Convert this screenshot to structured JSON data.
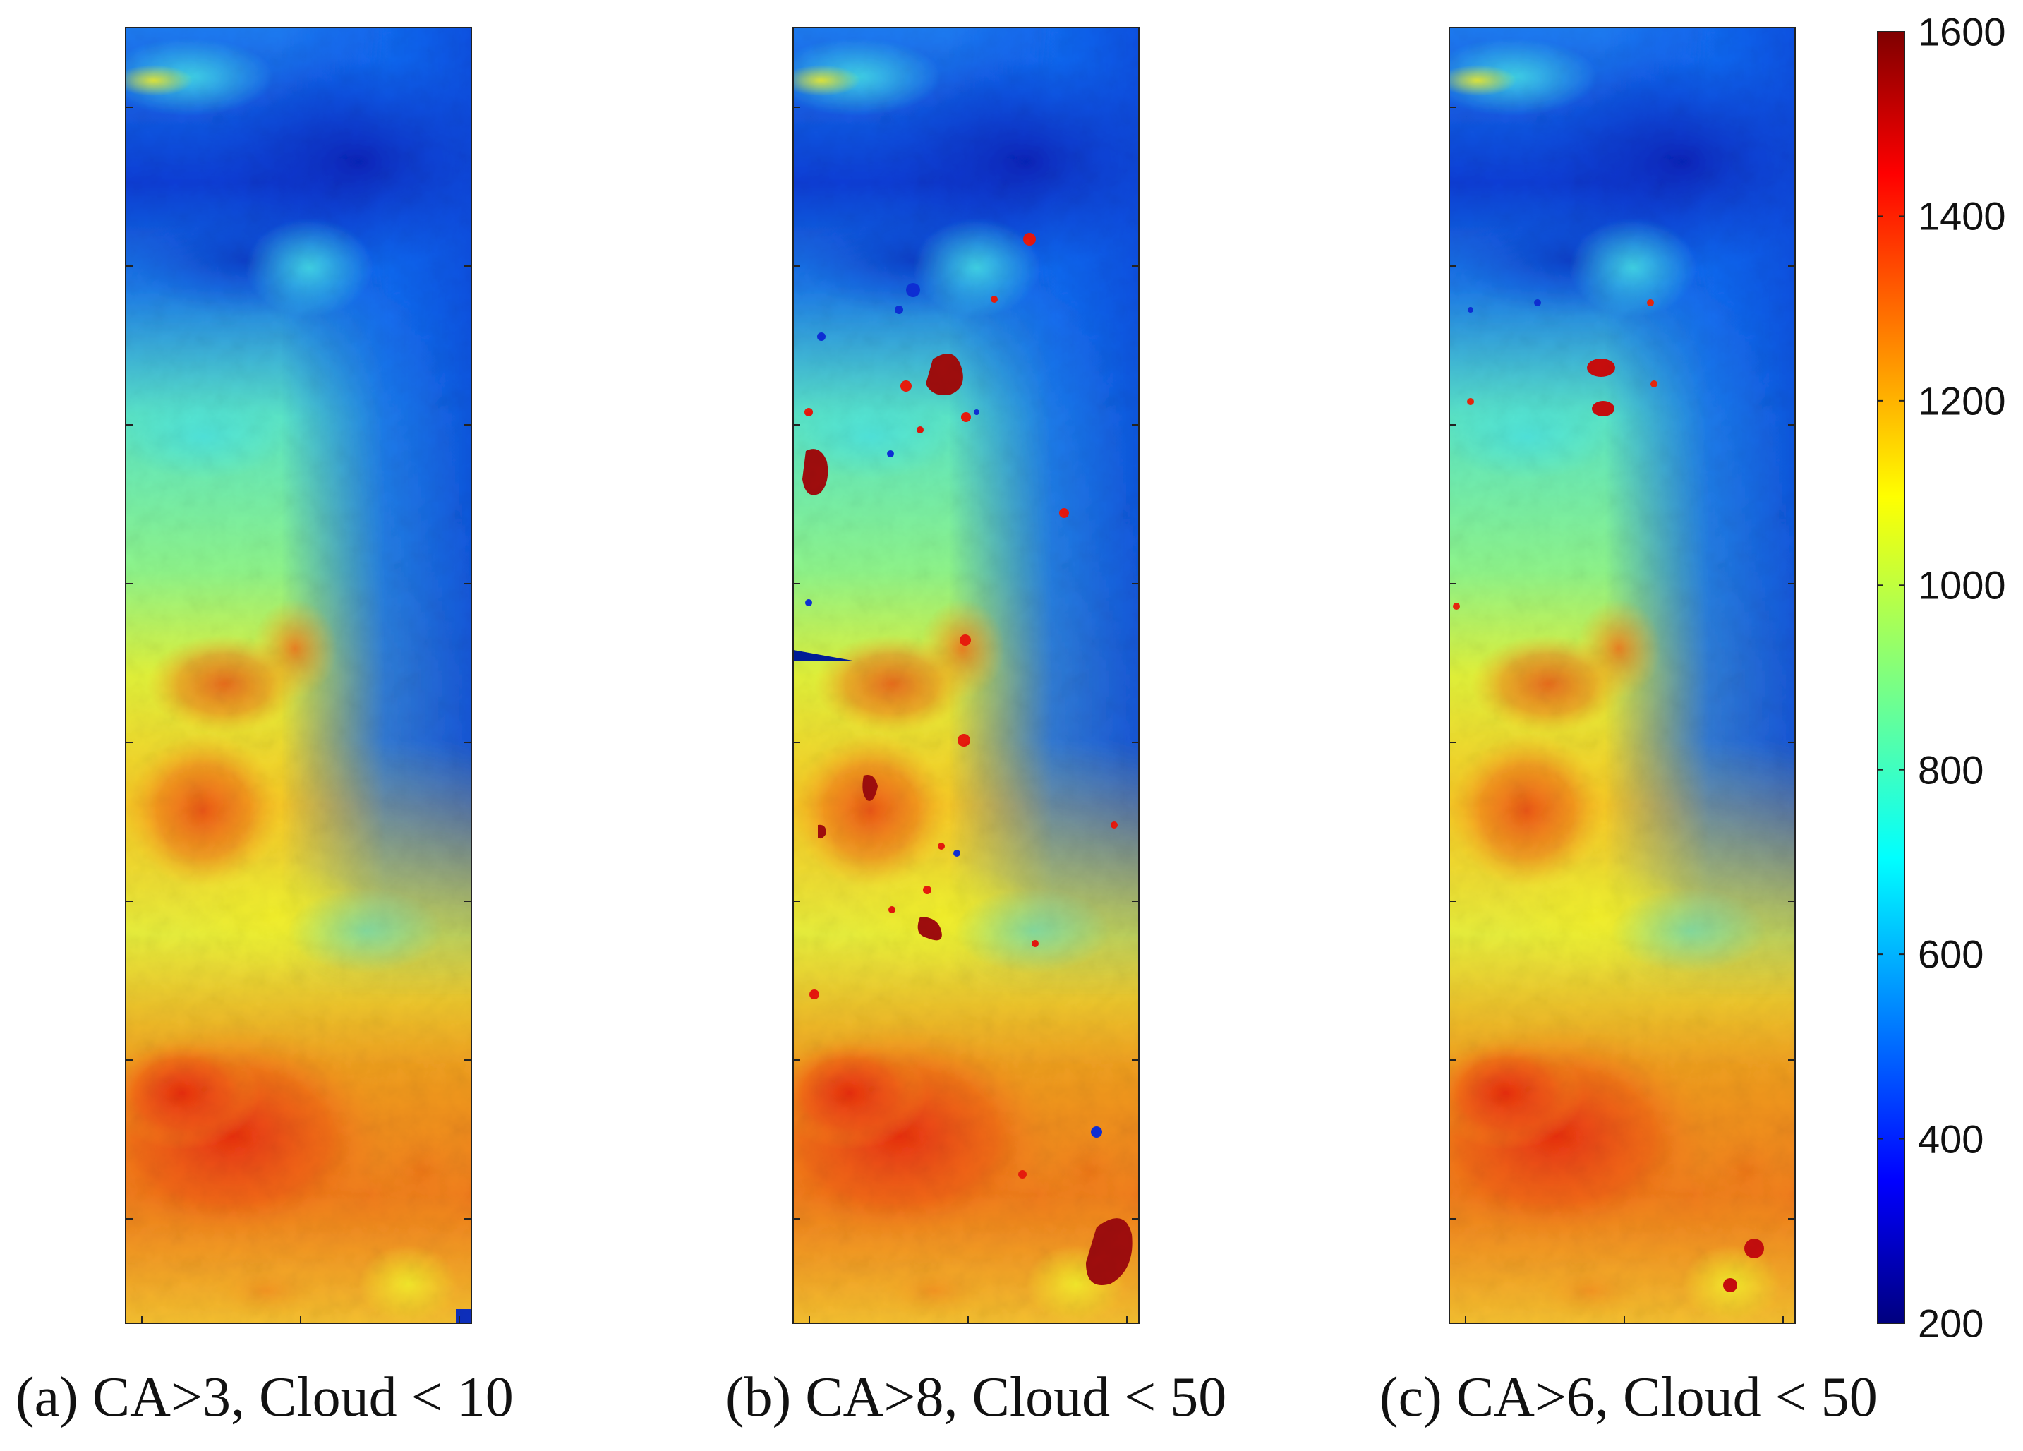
{
  "chart_data": {
    "type": "heatmap",
    "colormap": "jet",
    "colorbar": {
      "min": 200,
      "max": 1600,
      "ticks": [
        200,
        400,
        600,
        800,
        1000,
        1200,
        1400,
        1600
      ],
      "tick_labels": [
        "200",
        "400",
        "600",
        "800",
        "1000",
        "1200",
        "1400",
        "1600"
      ],
      "placement": "right"
    },
    "panels": [
      {
        "caption": "(a) CA>3, Cloud < 10",
        "description_values": "elevation-like field; low values (~250-400) in top-right, high values (~1300-1450) in bottom-left",
        "anomalies": []
      },
      {
        "caption": "(b) CA>8, Cloud < 50",
        "description_values": "same field with many high-value outlier spots (~1600) and low-value outliers (~300)",
        "anomalies": [
          "many-high-outliers",
          "left-edge-low-wedge"
        ]
      },
      {
        "caption": "(c) CA>6, Cloud < 50",
        "description_values": "same field with fewer outlier spots than (b)",
        "anomalies": [
          "few-high-outliers"
        ]
      }
    ]
  }
}
